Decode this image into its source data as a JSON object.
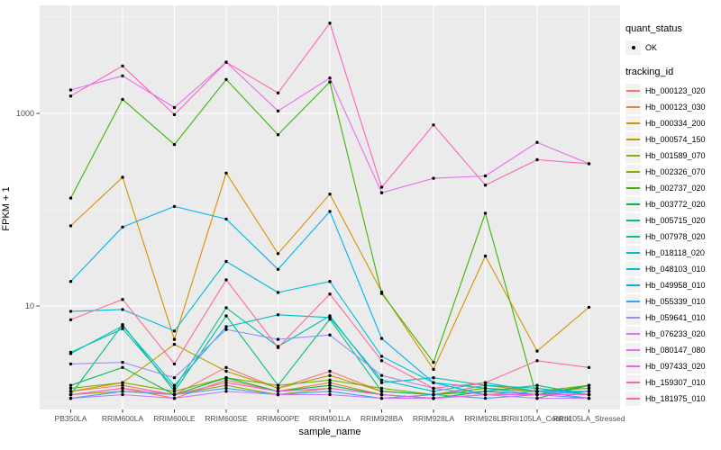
{
  "figure": {
    "y_axis_title": "FPKM + 1",
    "x_axis_title": "sample_name",
    "y_tick_labels": [
      "1000",
      "10"
    ],
    "legend": {
      "quant_status_title": "quant_status",
      "quant_status_ok_label": "OK",
      "tracking_id_title": "tracking_id"
    }
  },
  "chart_data": {
    "type": "line",
    "title": "",
    "xlabel": "sample_name",
    "ylabel": "FPKM + 1",
    "y_scale": "log10",
    "ylim": [
      1,
      10000
    ],
    "y_major_breaks": [
      10,
      1000
    ],
    "y_minor_breaks": [
      1,
      100,
      10000
    ],
    "grid": "on",
    "legend_position": "right",
    "point_color": "#000000",
    "panel_background": "#ebebeb",
    "quant_status_value": "OK",
    "x": [
      "PB350LA",
      "RRIM600LA",
      "RRIM600LE",
      "RRIM600SE",
      "RRIM600PE",
      "RRIM901LA",
      "RRIM928BA",
      "RRIM928LA",
      "RRIM928LE",
      "RRII105LA_Control",
      "RRII105LA_Stressed"
    ],
    "series": [
      {
        "name": "Hb_000123_020",
        "color": "#F8766D",
        "values": [
          1.3,
          1.5,
          1.2,
          2.3,
          1.4,
          2.1,
          1.3,
          1.2,
          1.4,
          1.3,
          1.4
        ]
      },
      {
        "name": "Hb_000123_030",
        "color": "#EA8331",
        "values": [
          1.2,
          1.4,
          1.1,
          1.7,
          1.3,
          1.6,
          1.2,
          1.1,
          1.3,
          1.2,
          1.3
        ]
      },
      {
        "name": "Hb_000334_200",
        "color": "#D89000",
        "values": [
          68,
          217,
          4.5,
          240,
          35,
          145,
          14,
          2.2,
          33,
          3.4,
          9.7
        ]
      },
      {
        "name": "Hb_000574_150",
        "color": "#C09B00",
        "values": [
          1.3,
          1.6,
          4.0,
          2.1,
          1.4,
          1.9,
          1.3,
          1.2,
          1.5,
          1.3,
          1.4
        ]
      },
      {
        "name": "Hb_001589_070",
        "color": "#A3A500",
        "values": [
          1.2,
          1.3,
          1.2,
          1.5,
          1.2,
          1.4,
          1.2,
          1.1,
          1.2,
          1.2,
          1.2
        ]
      },
      {
        "name": "Hb_002326_070",
        "color": "#7CAE00",
        "values": [
          1.4,
          1.6,
          1.3,
          1.8,
          1.5,
          1.7,
          1.4,
          1.2,
          1.4,
          1.3,
          1.5
        ]
      },
      {
        "name": "Hb_002737_020",
        "color": "#39B600",
        "values": [
          132,
          1400,
          475,
          2250,
          600,
          2120,
          13.5,
          2.6,
          92,
          1.1,
          1.5
        ]
      },
      {
        "name": "Hb_003772_020",
        "color": "#00BB4E",
        "values": [
          1.5,
          2.3,
          1.2,
          1.8,
          1.3,
          1.5,
          1.2,
          1.1,
          1.3,
          1.2,
          1.5
        ]
      },
      {
        "name": "Hb_005715_020",
        "color": "#00BF7D",
        "values": [
          1.2,
          6.4,
          1.3,
          7.9,
          1.5,
          7.3,
          1.3,
          1.2,
          1.3,
          1.5,
          1.2
        ]
      },
      {
        "name": "Hb_007978_020",
        "color": "#00C1A3",
        "values": [
          3.3,
          5.8,
          1.4,
          9.6,
          3.8,
          7.9,
          1.6,
          1.8,
          1.5,
          1.4,
          1.2
        ]
      },
      {
        "name": "Hb_018118_020",
        "color": "#00BFC4",
        "values": [
          3.2,
          6.2,
          1.5,
          6.1,
          8.1,
          7.6,
          1.7,
          1.3,
          1.6,
          1.3,
          1.1
        ]
      },
      {
        "name": "Hb_048103_010",
        "color": "#00BBDB",
        "values": [
          8.8,
          9.2,
          5.5,
          29,
          13.8,
          18,
          3.0,
          1.6,
          1.4,
          1.2,
          1.3
        ]
      },
      {
        "name": "Hb_049958_010",
        "color": "#00B0F6",
        "values": [
          18,
          66,
          108,
          80,
          24,
          96,
          4.6,
          1.6,
          1.2,
          1.3,
          1.3
        ]
      },
      {
        "name": "Hb_055339_010",
        "color": "#35A2FF",
        "values": [
          1.1,
          1.3,
          1.2,
          1.4,
          1.2,
          1.3,
          1.1,
          1.2,
          1.1,
          1.2,
          1.1
        ]
      },
      {
        "name": "Hb_059641_010",
        "color": "#9590FF",
        "values": [
          2.5,
          2.6,
          1.8,
          5.7,
          4.5,
          5.0,
          1.9,
          1.4,
          1.2,
          1.3,
          1.2
        ]
      },
      {
        "name": "Hb_076233_020",
        "color": "#C77CFF",
        "values": [
          1.1,
          1.2,
          1.1,
          1.3,
          1.2,
          1.2,
          1.1,
          1.1,
          1.2,
          1.1,
          1.1
        ]
      },
      {
        "name": "Hb_080147_080",
        "color": "#E76BF3",
        "values": [
          1750,
          2455,
          1150,
          3400,
          1060,
          2330,
          150,
          212,
          224,
          500,
          300
        ]
      },
      {
        "name": "Hb_097433_020",
        "color": "#FA62DB",
        "values": [
          1.2,
          1.4,
          1.2,
          1.6,
          1.3,
          1.4,
          1.2,
          1.1,
          1.2,
          1.2,
          1.2
        ]
      },
      {
        "name": "Hb_159307_010",
        "color": "#FF62BC",
        "values": [
          1515,
          3110,
          970,
          3400,
          1630,
          8650,
          171,
          760,
          180,
          330,
          300
        ]
      },
      {
        "name": "Hb_181975_010",
        "color": "#FF6A98",
        "values": [
          7.2,
          11.7,
          2.5,
          18.7,
          3.7,
          13.3,
          2.7,
          1.4,
          1.6,
          2.7,
          2.3
        ]
      }
    ]
  }
}
